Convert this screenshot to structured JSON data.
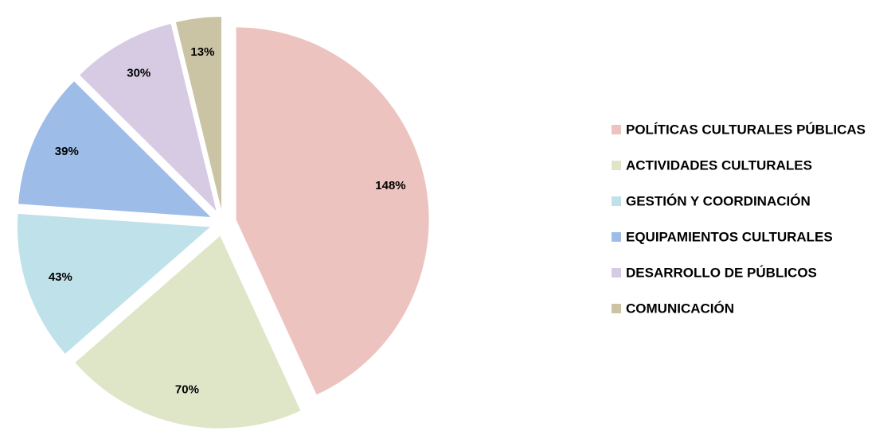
{
  "chart_data": {
    "type": "pie",
    "categories": [
      "POLÍTICAS CULTURALES PÚBLICAS",
      "ACTIVIDADES CULTURALES",
      "GESTIÓN Y COORDINACIÓN",
      "EQUIPAMIENTOS CULTURALES",
      "DESARROLLO DE PÚBLICOS",
      "COMUNICACIÓN"
    ],
    "values": [
      148,
      70,
      43,
      39,
      30,
      13
    ],
    "value_labels": [
      "148%",
      "70%",
      "43%",
      "39%",
      "30%",
      "13%"
    ],
    "colors": [
      "#ecc3bf",
      "#dfe6c8",
      "#bfe2ea",
      "#9dbde8",
      "#d7cbe3",
      "#cbc4a4"
    ],
    "legend": "right"
  }
}
